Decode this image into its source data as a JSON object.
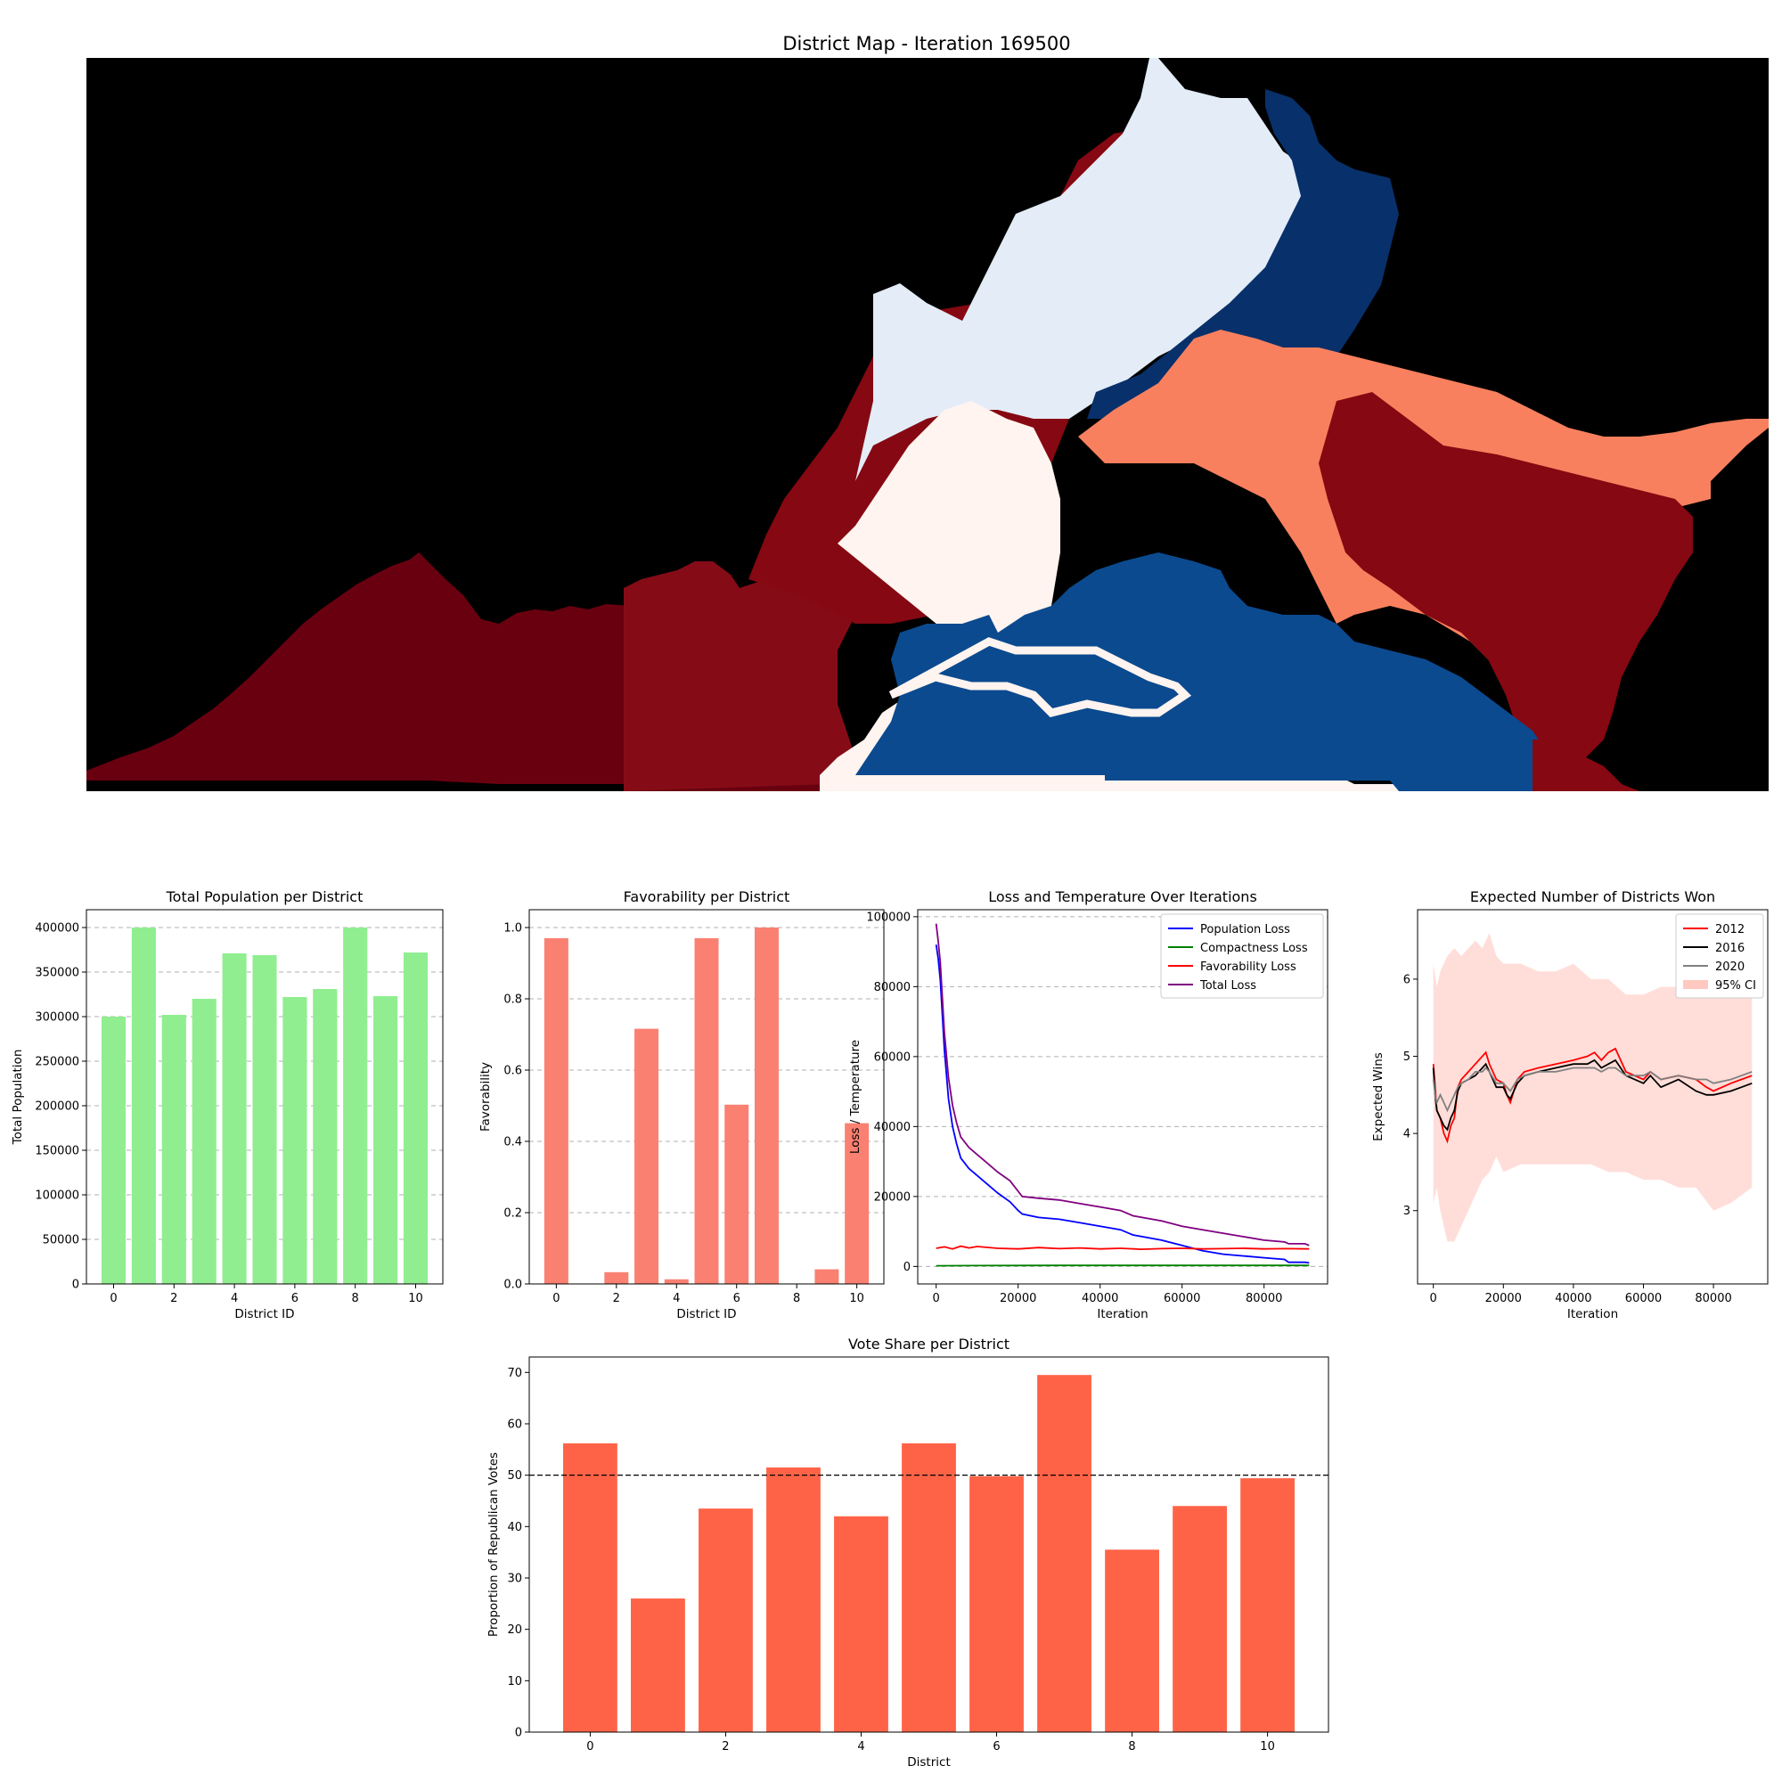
{
  "figure": {
    "background": "#ffffff"
  },
  "map": {
    "title": "District Map - Iteration 169500",
    "colors": {
      "background": "#000000",
      "lightblue": "#e3ecf7",
      "darkblue": "#08306b",
      "midblue": "#0b4a8f",
      "salmon": "#f9805e",
      "cream": "#fff4ef",
      "darkred": "#860812",
      "deepred": "#690010",
      "midred": "#850c17"
    }
  },
  "chart_data": [
    {
      "id": "population",
      "type": "bar",
      "title": "Total Population per District",
      "xlabel": "District ID",
      "ylabel": "Total Population",
      "x": [
        0,
        1,
        2,
        3,
        4,
        5,
        6,
        7,
        8,
        9,
        10
      ],
      "values": [
        300000,
        400000,
        302000,
        320000,
        371000,
        369000,
        322000,
        331000,
        400000,
        323000,
        372000
      ],
      "color": "#90ee90",
      "xlim": [
        -0.9,
        10.9
      ],
      "ylim": [
        0,
        420000
      ],
      "xticks": [
        0,
        2,
        4,
        6,
        8,
        10
      ],
      "yticks": [
        0,
        50000,
        100000,
        150000,
        200000,
        250000,
        300000,
        350000,
        400000
      ],
      "grid": "y-dashed"
    },
    {
      "id": "favorability",
      "type": "bar",
      "title": "Favorability per District",
      "xlabel": "District ID",
      "ylabel": "Favorability",
      "x": [
        0,
        1,
        2,
        3,
        4,
        5,
        6,
        7,
        8,
        9,
        10
      ],
      "values": [
        0.97,
        0.0,
        0.033,
        0.716,
        0.013,
        0.97,
        0.503,
        1.0,
        0.0,
        0.041,
        0.451
      ],
      "color": "#fa8072",
      "xlim": [
        -0.9,
        10.9
      ],
      "ylim": [
        0,
        1.05
      ],
      "xticks": [
        0,
        2,
        4,
        6,
        8,
        10
      ],
      "yticks": [
        0.0,
        0.2,
        0.4,
        0.6,
        0.8,
        1.0
      ],
      "yticklabels": [
        "0.0",
        "0.2",
        "0.4",
        "0.6",
        "0.8",
        "1.0"
      ],
      "grid": "y-dashed"
    },
    {
      "id": "loss",
      "type": "line",
      "title": "Loss and Temperature Over Iterations",
      "xlabel": "Iteration",
      "ylabel": "Loss / Temperature",
      "xlim": [
        -4500,
        95500
      ],
      "ylim": [
        -5000,
        102000
      ],
      "xticks": [
        0,
        20000,
        40000,
        60000,
        80000
      ],
      "yticks": [
        0,
        20000,
        40000,
        60000,
        80000,
        100000
      ],
      "grid": "y-dashed",
      "legend": "top-right",
      "series": [
        {
          "name": "Population Loss",
          "color": "#0000ff",
          "x": [
            0,
            500,
            1000,
            1500,
            2000,
            3000,
            4000,
            5000,
            6000,
            8000,
            10000,
            12000,
            15000,
            18000,
            20000,
            21000,
            25000,
            30000,
            35000,
            40000,
            45000,
            48000,
            55000,
            60000,
            65000,
            70000,
            75000,
            80000,
            85000,
            86000,
            90000,
            91000
          ],
          "y": [
            92000,
            88000,
            82000,
            72000,
            62000,
            48000,
            40000,
            35000,
            31000,
            28000,
            26000,
            24000,
            21000,
            18500,
            16000,
            15000,
            14000,
            13500,
            12500,
            11500,
            10500,
            9000,
            7500,
            6000,
            4500,
            3500,
            3000,
            2500,
            2000,
            1200,
            1200,
            1000
          ]
        },
        {
          "name": "Compactness Loss",
          "color": "#008000",
          "x": [
            0,
            10000,
            20000,
            30000,
            40000,
            50000,
            60000,
            70000,
            80000,
            91000
          ],
          "y": [
            200,
            250,
            280,
            300,
            300,
            300,
            300,
            300,
            300,
            300
          ]
        },
        {
          "name": "Favorability Loss",
          "color": "#ff0000",
          "x": [
            0,
            2000,
            4000,
            6000,
            8000,
            10000,
            15000,
            20000,
            25000,
            30000,
            35000,
            40000,
            45000,
            50000,
            55000,
            60000,
            65000,
            70000,
            75000,
            80000,
            85000,
            91000
          ],
          "y": [
            5200,
            5600,
            5000,
            5800,
            5300,
            5700,
            5200,
            5000,
            5400,
            5100,
            5300,
            5000,
            5200,
            4900,
            5100,
            5200,
            5000,
            5100,
            5200,
            5000,
            5100,
            5000
          ]
        },
        {
          "name": "Total Loss",
          "color": "#800080",
          "x": [
            0,
            500,
            1000,
            1500,
            2000,
            3000,
            4000,
            5000,
            6000,
            8000,
            10000,
            12000,
            15000,
            18000,
            20000,
            21000,
            25000,
            30000,
            35000,
            40000,
            45000,
            48000,
            55000,
            60000,
            65000,
            70000,
            75000,
            80000,
            85000,
            86000,
            90000,
            91000
          ],
          "y": [
            98000,
            93000,
            87000,
            77000,
            67000,
            54000,
            46000,
            41000,
            37000,
            34000,
            32000,
            30000,
            27000,
            24500,
            21500,
            20000,
            19500,
            19000,
            18000,
            17000,
            16000,
            14500,
            13000,
            11500,
            10500,
            9500,
            8500,
            7500,
            7000,
            6500,
            6500,
            6000
          ]
        }
      ]
    },
    {
      "id": "wins",
      "type": "line",
      "title": "Expected Number of Districts Won",
      "xlabel": "Iteration",
      "ylabel": "Expected Wins",
      "xlim": [
        -4500,
        95500
      ],
      "ylim": [
        2.05,
        6.9
      ],
      "xticks": [
        0,
        20000,
        40000,
        60000,
        80000
      ],
      "yticks": [
        3,
        4,
        5,
        6
      ],
      "grid": "none",
      "legend": "top-right",
      "ci": {
        "name": "95% CI",
        "color": "#ffc8c0",
        "x": [
          0,
          1000,
          2000,
          4000,
          6000,
          8000,
          10000,
          12000,
          14000,
          16000,
          18000,
          20000,
          25000,
          30000,
          35000,
          40000,
          45000,
          50000,
          55000,
          60000,
          65000,
          70000,
          75000,
          80000,
          85000,
          91000
        ],
        "upper": [
          6.2,
          5.9,
          6.1,
          6.3,
          6.4,
          6.3,
          6.4,
          6.5,
          6.4,
          6.6,
          6.3,
          6.2,
          6.2,
          6.1,
          6.1,
          6.2,
          6.0,
          6.0,
          5.8,
          5.8,
          5.9,
          5.9,
          5.9,
          5.9,
          5.9,
          5.9
        ],
        "lower": [
          3.1,
          3.3,
          3.0,
          2.6,
          2.6,
          2.8,
          3.0,
          3.2,
          3.4,
          3.5,
          3.7,
          3.5,
          3.6,
          3.6,
          3.6,
          3.6,
          3.6,
          3.5,
          3.5,
          3.4,
          3.4,
          3.3,
          3.3,
          3.0,
          3.1,
          3.3
        ]
      },
      "series": [
        {
          "name": "2012",
          "color": "#ff0000",
          "x": [
            0,
            500,
            1000,
            2000,
            3000,
            4000,
            5000,
            6000,
            7000,
            8000,
            10000,
            12000,
            14000,
            15000,
            16000,
            18000,
            20000,
            21000,
            22000,
            24000,
            26000,
            30000,
            35000,
            40000,
            44000,
            46000,
            48000,
            50000,
            52000,
            55000,
            60000,
            62000,
            65000,
            70000,
            75000,
            78000,
            80000,
            85000,
            88000,
            91000
          ],
          "y": [
            4.9,
            4.6,
            4.3,
            4.2,
            4.0,
            3.9,
            4.1,
            4.2,
            4.6,
            4.7,
            4.8,
            4.9,
            5.0,
            5.05,
            4.9,
            4.7,
            4.65,
            4.5,
            4.4,
            4.7,
            4.8,
            4.85,
            4.9,
            4.95,
            5.0,
            5.05,
            4.95,
            5.05,
            5.1,
            4.8,
            4.7,
            4.8,
            4.7,
            4.75,
            4.7,
            4.6,
            4.55,
            4.65,
            4.7,
            4.75
          ]
        },
        {
          "name": "2016",
          "color": "#000000",
          "x": [
            0,
            500,
            1000,
            2000,
            3000,
            4000,
            5000,
            6000,
            7000,
            8000,
            10000,
            12000,
            14000,
            15000,
            16000,
            18000,
            20000,
            21000,
            22000,
            24000,
            26000,
            30000,
            35000,
            40000,
            44000,
            46000,
            48000,
            50000,
            52000,
            55000,
            60000,
            62000,
            65000,
            70000,
            75000,
            78000,
            80000,
            85000,
            88000,
            91000
          ],
          "y": [
            4.85,
            4.5,
            4.3,
            4.2,
            4.1,
            4.05,
            4.2,
            4.3,
            4.55,
            4.65,
            4.7,
            4.75,
            4.85,
            4.9,
            4.8,
            4.6,
            4.6,
            4.5,
            4.45,
            4.65,
            4.75,
            4.8,
            4.85,
            4.9,
            4.9,
            4.95,
            4.85,
            4.9,
            4.95,
            4.75,
            4.65,
            4.75,
            4.6,
            4.7,
            4.55,
            4.5,
            4.5,
            4.55,
            4.6,
            4.65
          ]
        },
        {
          "name": "2020",
          "color": "#808080",
          "x": [
            0,
            500,
            1000,
            2000,
            3000,
            4000,
            5000,
            6000,
            7000,
            8000,
            10000,
            12000,
            14000,
            15000,
            16000,
            18000,
            20000,
            21000,
            22000,
            24000,
            26000,
            30000,
            35000,
            40000,
            44000,
            46000,
            48000,
            50000,
            52000,
            55000,
            60000,
            62000,
            65000,
            70000,
            75000,
            78000,
            80000,
            85000,
            88000,
            91000
          ],
          "y": [
            4.7,
            4.5,
            4.4,
            4.5,
            4.4,
            4.3,
            4.4,
            4.5,
            4.6,
            4.65,
            4.7,
            4.8,
            4.8,
            4.85,
            4.8,
            4.65,
            4.65,
            4.6,
            4.55,
            4.7,
            4.75,
            4.8,
            4.8,
            4.85,
            4.85,
            4.85,
            4.8,
            4.85,
            4.85,
            4.75,
            4.75,
            4.8,
            4.7,
            4.75,
            4.7,
            4.7,
            4.65,
            4.7,
            4.75,
            4.8
          ]
        }
      ]
    },
    {
      "id": "votes",
      "type": "bar",
      "title": "Vote Share per District",
      "xlabel": "District",
      "ylabel": "Proportion of Republican Votes",
      "x": [
        0,
        1,
        2,
        3,
        4,
        5,
        6,
        7,
        8,
        9,
        10
      ],
      "values": [
        56.2,
        26.0,
        43.5,
        51.5,
        42.0,
        56.2,
        49.8,
        69.5,
        35.5,
        44.0,
        49.4
      ],
      "color": "#ff6347",
      "reference_line": 50,
      "xlim": [
        -0.9,
        10.9
      ],
      "ylim": [
        0,
        73
      ],
      "xticks": [
        0,
        2,
        4,
        6,
        8,
        10
      ],
      "yticks": [
        0,
        10,
        20,
        30,
        40,
        50,
        60,
        70
      ],
      "grid": "none"
    }
  ]
}
